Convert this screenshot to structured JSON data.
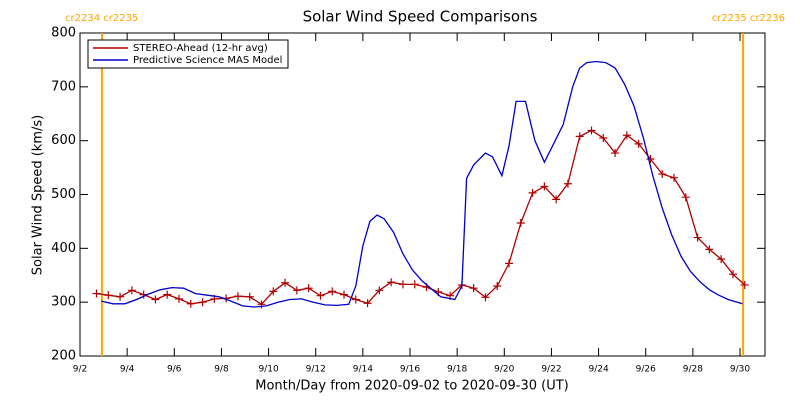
{
  "chart_data": {
    "type": "line",
    "title": "Solar Wind Speed Comparisons",
    "x_label": "Month/Day from 2020-09-02 to 2020-09-30 (UT)",
    "y_label": "Solar Wind Speed (km/s)",
    "xlim": [
      2,
      31.06
    ],
    "ylim": [
      200,
      800
    ],
    "yticks": [
      200,
      300,
      400,
      500,
      600,
      700,
      800
    ],
    "xticks": [
      {
        "value": 2,
        "label": "9/2"
      },
      {
        "value": 4,
        "label": "9/4"
      },
      {
        "value": 6,
        "label": "9/6"
      },
      {
        "value": 8,
        "label": "9/8"
      },
      {
        "value": 10,
        "label": "9/10"
      },
      {
        "value": 12,
        "label": "9/12"
      },
      {
        "value": 14,
        "label": "9/14"
      },
      {
        "value": 16,
        "label": "9/16"
      },
      {
        "value": 18,
        "label": "9/18"
      },
      {
        "value": 20,
        "label": "9/20"
      },
      {
        "value": 22,
        "label": "9/22"
      },
      {
        "value": 24,
        "label": "9/24"
      },
      {
        "value": 26,
        "label": "9/26"
      },
      {
        "value": 28,
        "label": "9/28"
      },
      {
        "value": 30,
        "label": "9/30"
      }
    ],
    "legend": "upper left",
    "markers": [
      {
        "x": 2.93,
        "label": "cr2234 cr2235",
        "color": "#ffa500"
      },
      {
        "x": 30.13,
        "label": "cr2235 cr2236",
        "color": "#ffa500"
      }
    ],
    "series": [
      {
        "name": "STEREO-Ahead (12-hr avg)",
        "color": "#b00000",
        "marker": "plus",
        "x": [
          2.7,
          3.2,
          3.7,
          4.2,
          4.7,
          5.2,
          5.7,
          6.2,
          6.7,
          7.2,
          7.7,
          8.2,
          8.7,
          9.2,
          9.7,
          10.2,
          10.7,
          11.2,
          11.7,
          12.2,
          12.7,
          13.2,
          13.7,
          14.2,
          14.7,
          15.2,
          15.7,
          16.2,
          16.7,
          17.2,
          17.7,
          18.2,
          18.7,
          19.2,
          19.7,
          20.2,
          20.7,
          21.2,
          21.7,
          22.2,
          22.7,
          23.2,
          23.7,
          24.2,
          24.7,
          25.2,
          25.7,
          26.2,
          26.7,
          27.2,
          27.7,
          28.2,
          28.7,
          29.2,
          29.7,
          30.2
        ],
        "values": [
          316,
          313,
          310,
          322,
          314,
          305,
          314,
          306,
          297,
          300,
          306,
          307,
          311,
          310,
          296,
          320,
          336,
          322,
          326,
          312,
          320,
          314,
          305,
          298,
          322,
          337,
          333,
          333,
          328,
          319,
          312,
          332,
          326,
          309,
          330,
          372,
          447,
          503,
          515,
          491,
          520,
          608,
          619,
          605,
          577,
          610,
          594,
          566,
          538,
          531,
          495,
          420,
          398,
          380,
          352,
          332
        ]
      },
      {
        "name": "Predictive Science MAS Model",
        "color": "#0000cc",
        "x": [
          2.9,
          3.4,
          3.9,
          4.4,
          4.9,
          5.4,
          5.9,
          6.4,
          6.9,
          7.4,
          7.9,
          8.4,
          8.9,
          9.4,
          9.9,
          10.4,
          10.9,
          11.4,
          11.9,
          12.4,
          12.9,
          13.4,
          13.7,
          14.0,
          14.3,
          14.6,
          14.9,
          15.3,
          15.7,
          16.1,
          16.5,
          16.9,
          17.3,
          17.9,
          18.2,
          18.4,
          18.7,
          19.2,
          19.5,
          19.9,
          20.2,
          20.5,
          20.9,
          21.3,
          21.7,
          22.1,
          22.5,
          22.9,
          23.2,
          23.5,
          23.9,
          24.3,
          24.7,
          25.1,
          25.5,
          25.9,
          26.3,
          26.7,
          27.1,
          27.5,
          27.9,
          28.3,
          28.7,
          29.1,
          29.5,
          30.1
        ],
        "values": [
          302,
          297,
          297,
          305,
          315,
          323,
          327,
          326,
          316,
          313,
          310,
          302,
          293,
          291,
          293,
          300,
          305,
          306,
          300,
          295,
          294,
          296,
          330,
          405,
          450,
          462,
          455,
          430,
          390,
          360,
          340,
          325,
          310,
          305,
          330,
          530,
          555,
          577,
          570,
          535,
          590,
          673,
          673,
          600,
          560,
          595,
          630,
          700,
          735,
          745,
          747,
          745,
          735,
          705,
          665,
          605,
          535,
          475,
          425,
          385,
          357,
          338,
          323,
          313,
          305,
          297
        ]
      }
    ]
  }
}
